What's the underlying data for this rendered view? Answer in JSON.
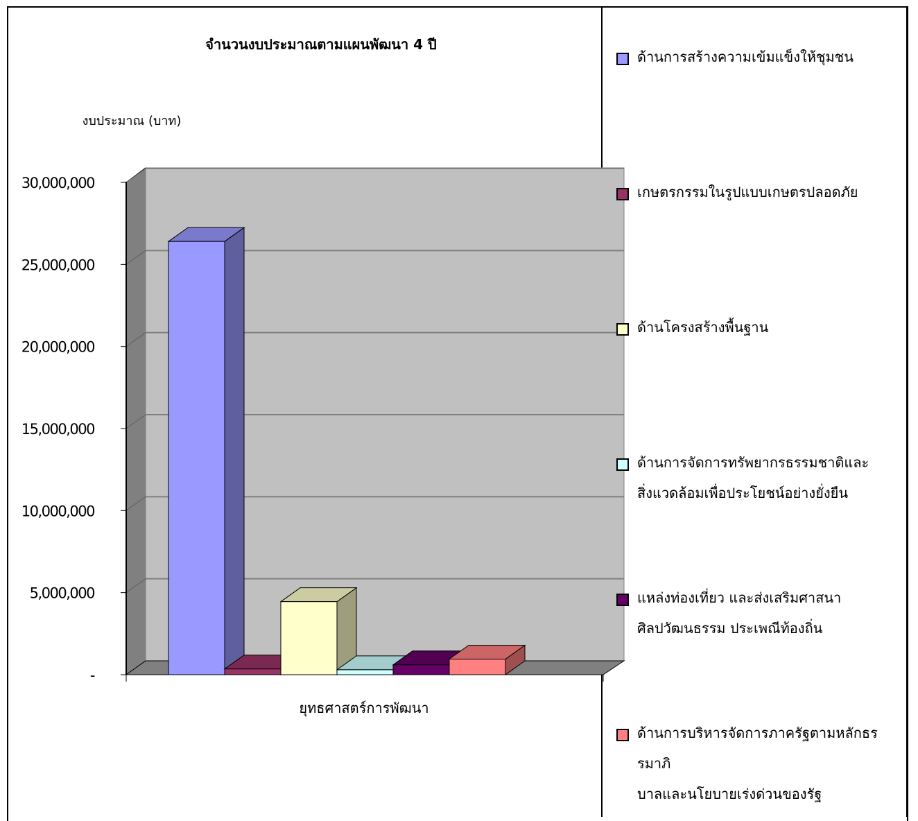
{
  "chart_data": {
    "type": "bar",
    "title": "จำนวนงบประมาณตามแผนพัฒนา 4 ปี",
    "ylabel": "งบประมาณ (บาท)",
    "xlabel": "",
    "categories": [
      "ยุทธศาสตร์การพัฒนา"
    ],
    "ylim": [
      0,
      30000000
    ],
    "yticks": [
      "-",
      "5,000,000",
      "10,000,000",
      "15,000,000",
      "20,000,000",
      "25,000,000",
      "30,000,000"
    ],
    "grid": true,
    "legend_position": "right",
    "series": [
      {
        "name": "ด้านการสร้างความเข้มแข็งให้ชุมชน",
        "values": [
          26400000
        ],
        "color": "#9999FF"
      },
      {
        "name": "เกษตรกรรมในรูปแบบเกษตรปลอดภัย",
        "values": [
          350000
        ],
        "color": "#993366"
      },
      {
        "name": "ด้านโครงสร้างพื้นฐาน",
        "values": [
          4450000
        ],
        "color": "#FFFFCC"
      },
      {
        "name": "ด้านการจัดการทรัพยากรธรรมชาติและสิ่งแวดล้อมเพื่อประโยชน์อย่างยั่งยืน",
        "values": [
          300000
        ],
        "color": "#CCFFFF"
      },
      {
        "name": "แหล่งท่องเที่ยว และส่งเสริมศาสนา ศิลปวัฒนธรรม ประเพณีท้องถิ่น",
        "values": [
          600000
        ],
        "color": "#660066"
      },
      {
        "name": "ด้านการบริหารจัดการภาครัฐตามหลักธรรมาภิบาลและนโยบายเร่งด่วนของรัฐ",
        "values": [
          950000
        ],
        "color": "#FF8080"
      }
    ]
  },
  "legend": {
    "lines": [
      [
        "ด้านการสร้างความเข้มแข็งให้ชุมชน"
      ],
      [
        "เกษตรกรรมในรูปแบบเกษตรปลอดภัย"
      ],
      [
        "ด้านโครงสร้างพื้นฐาน"
      ],
      [
        "ด้านการจัดการทรัพยากรธรรมชาติและ",
        "สิ่งแวดล้อมเพื่อประโยชน์อย่างยั่งยืน"
      ],
      [
        "แหล่งท่องเที่ยว และส่งเสริมศาสนา",
        "ศิลปวัฒนธรรม ประเพณีท้องถิ่น"
      ],
      [
        "ด้านการบริหารจัดการภาครัฐตามหลักธรรมาภิ",
        "บาลและนโยบายเร่งด่วนของรัฐ"
      ]
    ]
  }
}
